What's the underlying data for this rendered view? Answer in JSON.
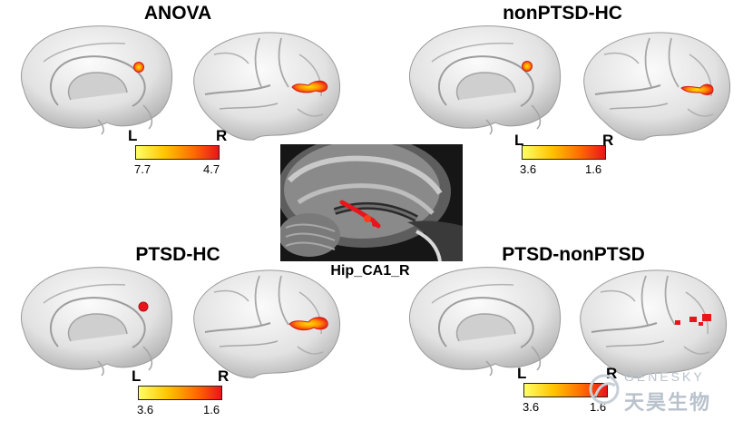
{
  "panels": [
    {
      "title": "ANOVA",
      "left_label": "L",
      "right_label": "R",
      "colorbar_min": "7.7",
      "colorbar_max": "4.7"
    },
    {
      "title": "nonPTSD-HC",
      "left_label": "L",
      "right_label": "R",
      "colorbar_min": "3.6",
      "colorbar_max": "1.6"
    },
    {
      "title": "PTSD-HC",
      "left_label": "L",
      "right_label": "R",
      "colorbar_min": "3.6",
      "colorbar_max": "1.6"
    },
    {
      "title": "PTSD-nonPTSD",
      "left_label": "L",
      "right_label": "R",
      "colorbar_min": "3.6",
      "colorbar_max": "1.6"
    }
  ],
  "center": {
    "label": "Hip_CA1_R"
  },
  "watermark": {
    "brand_en": "GENESKY",
    "brand_cn": "天昊生物"
  },
  "colors": {
    "heat_low": "#ffff66",
    "heat_mid": "#ff8c00",
    "heat_high": "#e8151b",
    "brain_surface": "#dedede",
    "watermark": "#b9c2cc"
  }
}
